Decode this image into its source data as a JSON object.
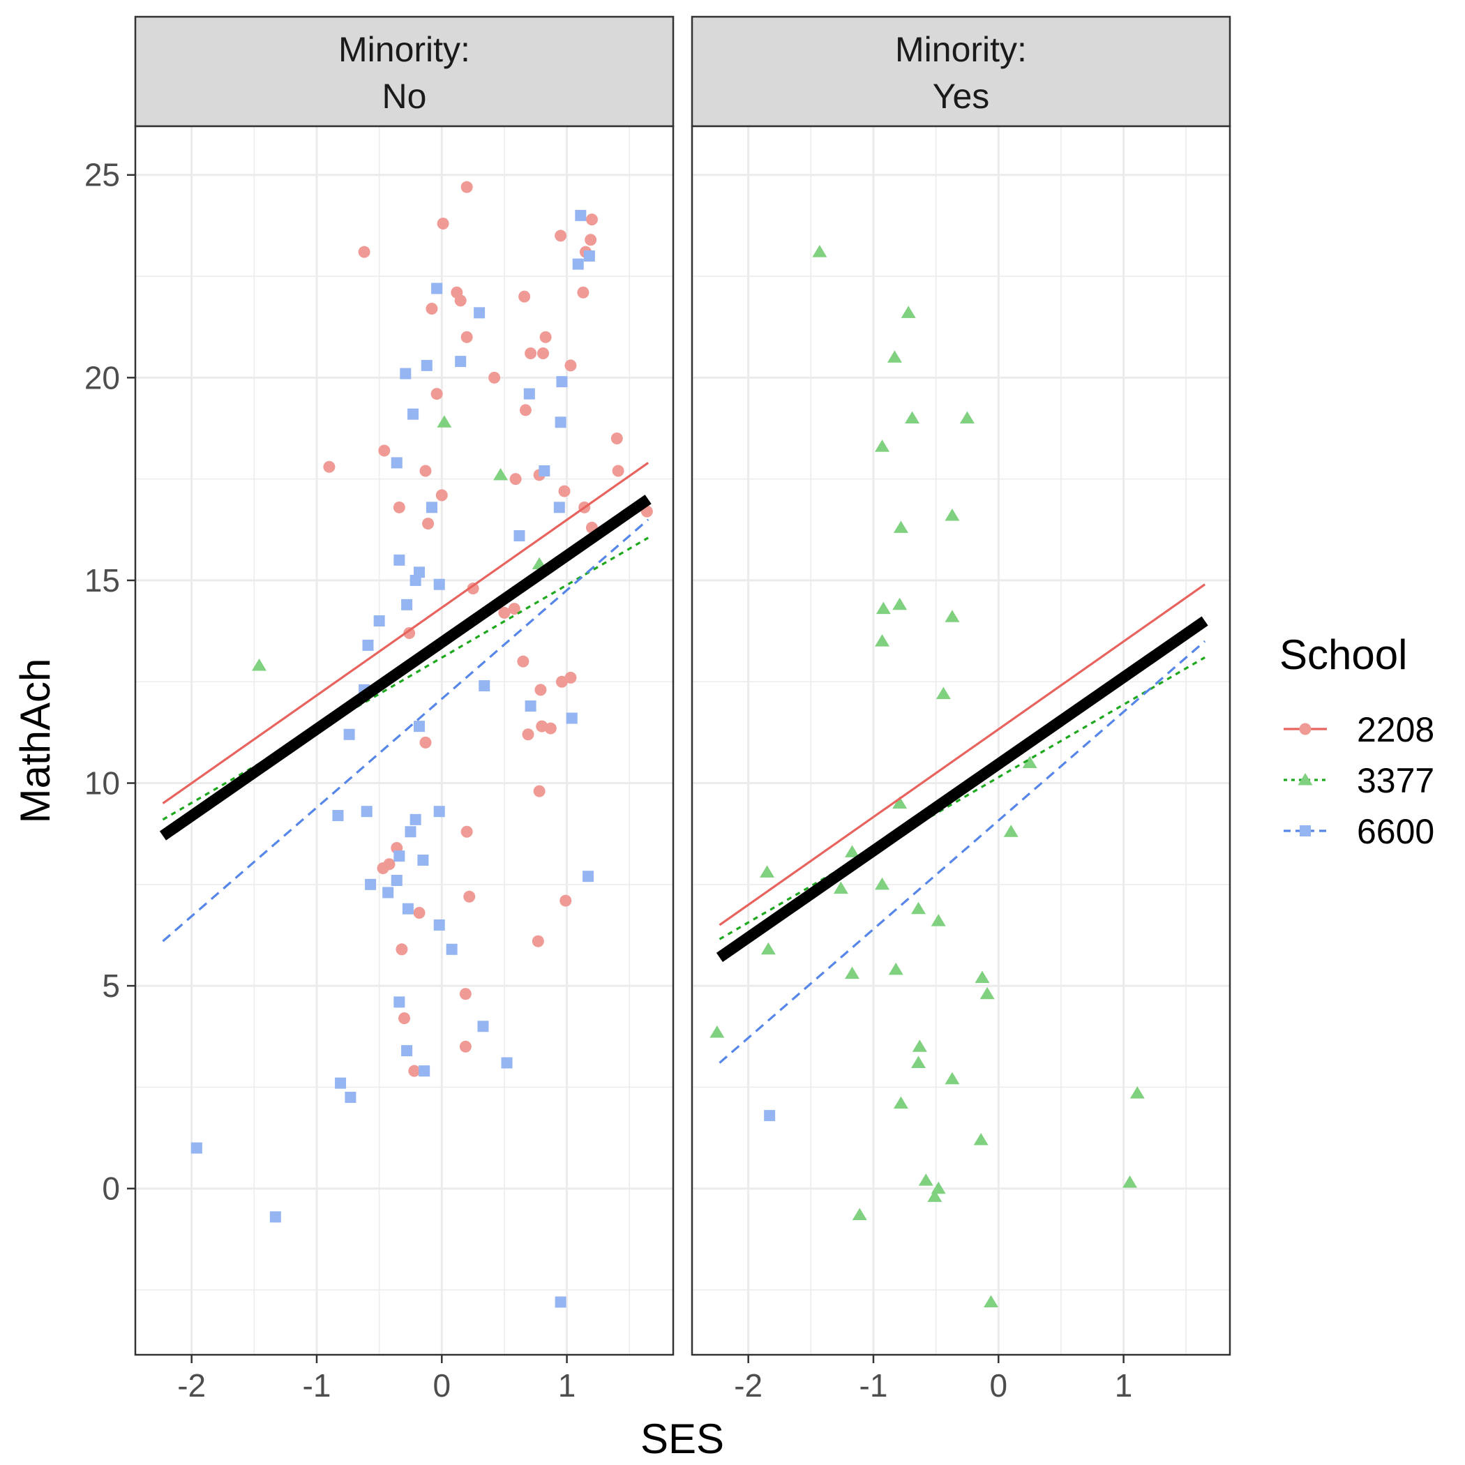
{
  "chart_data": {
    "type": "scatter",
    "xlabel": "SES",
    "ylabel": "MathAch",
    "xlim": [
      -2.45,
      1.85
    ],
    "ylim": [
      -4.1,
      26.2
    ],
    "x_ticks": [
      -2,
      -1,
      0,
      1
    ],
    "x_tick_labels": [
      "-2",
      "-1",
      "0",
      "1"
    ],
    "y_ticks": [
      0,
      5,
      10,
      15,
      20,
      25
    ],
    "y_tick_labels": [
      "0",
      "5",
      "10",
      "15",
      "20",
      "25"
    ],
    "grid": true,
    "legend": {
      "title": "School",
      "placement": "right",
      "entries": [
        {
          "label": "2208",
          "color": "#e8635e",
          "marker": "circle",
          "line": "solid"
        },
        {
          "label": "3377",
          "color": "#1ea81e",
          "marker": "triangle",
          "line": "dotted"
        },
        {
          "label": "6600",
          "color": "#5586e8",
          "marker": "square",
          "line": "dashed"
        }
      ]
    },
    "colors": {
      "2208_point": "#f09a96",
      "3377_point": "#7fd07f",
      "6600_point": "#94b4f2",
      "overall_line": "#000000",
      "strip_fill": "#d9d9d9",
      "grid": "#ebebeb"
    },
    "panels": [
      {
        "strip_line1": "Minority:",
        "strip_line2": "No",
        "fits": [
          {
            "school": "2208",
            "x": [
              -2.23,
              1.65
            ],
            "y": [
              9.5,
              17.9
            ]
          },
          {
            "school": "3377",
            "x": [
              -2.23,
              1.65
            ],
            "y": [
              9.1,
              16.05
            ]
          },
          {
            "school": "6600",
            "x": [
              -2.23,
              1.65
            ],
            "y": [
              6.1,
              16.5
            ]
          },
          {
            "school": "overall",
            "x": [
              -2.23,
              1.65
            ],
            "y": [
              8.7,
              17.0
            ]
          }
        ],
        "points": {
          "2208": [
            [
              -0.62,
              23.1
            ],
            [
              0.2,
              24.7
            ],
            [
              0.01,
              23.8
            ],
            [
              0.95,
              23.5
            ],
            [
              1.2,
              23.9
            ],
            [
              1.19,
              23.4
            ],
            [
              1.15,
              23.1
            ],
            [
              0.12,
              22.1
            ],
            [
              0.15,
              21.9
            ],
            [
              -0.08,
              21.7
            ],
            [
              0.66,
              22.0
            ],
            [
              1.13,
              22.1
            ],
            [
              0.2,
              21.0
            ],
            [
              0.83,
              21.0
            ],
            [
              0.71,
              20.6
            ],
            [
              0.81,
              20.6
            ],
            [
              1.03,
              20.3
            ],
            [
              0.42,
              20.0
            ],
            [
              -0.04,
              19.6
            ],
            [
              0.67,
              19.2
            ],
            [
              -0.46,
              18.2
            ],
            [
              -0.9,
              17.8
            ],
            [
              -0.13,
              17.7
            ],
            [
              0.59,
              17.5
            ],
            [
              0.78,
              17.6
            ],
            [
              1.4,
              18.5
            ],
            [
              1.41,
              17.7
            ],
            [
              0.98,
              17.2
            ],
            [
              0.0,
              17.1
            ],
            [
              -0.34,
              16.8
            ],
            [
              1.14,
              16.8
            ],
            [
              -0.11,
              16.4
            ],
            [
              1.2,
              16.3
            ],
            [
              1.64,
              16.7
            ],
            [
              0.25,
              14.8
            ],
            [
              0.5,
              14.2
            ],
            [
              0.58,
              14.3
            ],
            [
              -0.26,
              13.7
            ],
            [
              0.65,
              13.0
            ],
            [
              0.79,
              12.3
            ],
            [
              1.03,
              12.6
            ],
            [
              0.96,
              12.5
            ],
            [
              0.8,
              11.4
            ],
            [
              0.69,
              11.2
            ],
            [
              0.87,
              11.35
            ],
            [
              -0.13,
              11.0
            ],
            [
              0.78,
              9.8
            ],
            [
              0.2,
              8.8
            ],
            [
              -0.36,
              8.4
            ],
            [
              -0.42,
              8.0
            ],
            [
              -0.47,
              7.9
            ],
            [
              0.22,
              7.2
            ],
            [
              0.99,
              7.1
            ],
            [
              -0.18,
              6.8
            ],
            [
              -0.32,
              5.9
            ],
            [
              0.77,
              6.1
            ],
            [
              0.19,
              4.8
            ],
            [
              -0.3,
              4.2
            ],
            [
              0.19,
              3.5
            ],
            [
              -0.22,
              2.9
            ]
          ],
          "3377": [
            [
              0.02,
              18.9
            ],
            [
              0.47,
              17.6
            ],
            [
              -1.46,
              12.9
            ],
            [
              0.78,
              15.4
            ]
          ],
          "6600": [
            [
              1.11,
              24.0
            ],
            [
              1.09,
              22.8
            ],
            [
              1.18,
              23.0
            ],
            [
              -0.04,
              22.2
            ],
            [
              0.3,
              21.6
            ],
            [
              0.15,
              20.4
            ],
            [
              -0.12,
              20.3
            ],
            [
              -0.29,
              20.1
            ],
            [
              0.96,
              19.9
            ],
            [
              0.7,
              19.6
            ],
            [
              -0.23,
              19.1
            ],
            [
              0.95,
              18.9
            ],
            [
              -0.36,
              17.9
            ],
            [
              0.82,
              17.7
            ],
            [
              -0.08,
              16.8
            ],
            [
              0.94,
              16.8
            ],
            [
              0.62,
              16.1
            ],
            [
              -0.34,
              15.5
            ],
            [
              -0.18,
              15.2
            ],
            [
              -0.21,
              15.0
            ],
            [
              -0.02,
              14.9
            ],
            [
              -0.5,
              14.0
            ],
            [
              -0.28,
              14.4
            ],
            [
              -0.59,
              13.4
            ],
            [
              0.34,
              12.4
            ],
            [
              -0.62,
              12.3
            ],
            [
              0.71,
              11.9
            ],
            [
              -0.74,
              11.2
            ],
            [
              -0.18,
              11.4
            ],
            [
              1.04,
              11.6
            ],
            [
              -0.83,
              9.2
            ],
            [
              -0.6,
              9.3
            ],
            [
              -0.21,
              9.1
            ],
            [
              -0.25,
              8.8
            ],
            [
              -0.02,
              9.3
            ],
            [
              -0.34,
              8.2
            ],
            [
              -0.15,
              8.1
            ],
            [
              1.17,
              7.7
            ],
            [
              -0.57,
              7.5
            ],
            [
              -0.36,
              7.6
            ],
            [
              -0.43,
              7.3
            ],
            [
              -0.27,
              6.9
            ],
            [
              -0.02,
              6.5
            ],
            [
              0.08,
              5.9
            ],
            [
              -0.34,
              4.6
            ],
            [
              0.33,
              4.0
            ],
            [
              -0.28,
              3.4
            ],
            [
              0.52,
              3.1
            ],
            [
              -0.14,
              2.9
            ],
            [
              -0.81,
              2.6
            ],
            [
              -0.73,
              2.25
            ],
            [
              -1.96,
              1.0
            ],
            [
              -1.33,
              -0.7
            ],
            [
              0.95,
              -2.8
            ]
          ]
        }
      },
      {
        "strip_line1": "Minority:",
        "strip_line2": "Yes",
        "fits": [
          {
            "school": "2208",
            "x": [
              -2.23,
              1.65
            ],
            "y": [
              6.5,
              14.9
            ]
          },
          {
            "school": "3377",
            "x": [
              -2.23,
              1.65
            ],
            "y": [
              6.15,
              13.1
            ]
          },
          {
            "school": "6600",
            "x": [
              -2.23,
              1.65
            ],
            "y": [
              3.1,
              13.5
            ]
          },
          {
            "school": "overall",
            "x": [
              -2.23,
              1.65
            ],
            "y": [
              5.7,
              14.0
            ]
          }
        ],
        "points": {
          "2208": [],
          "3377": [
            [
              -1.43,
              23.1
            ],
            [
              -0.72,
              21.6
            ],
            [
              -0.83,
              20.5
            ],
            [
              -0.69,
              19.0
            ],
            [
              -0.25,
              19.0
            ],
            [
              -0.93,
              18.3
            ],
            [
              -0.37,
              16.6
            ],
            [
              -0.78,
              16.3
            ],
            [
              -0.92,
              14.3
            ],
            [
              -0.79,
              14.4
            ],
            [
              -0.37,
              14.1
            ],
            [
              -0.93,
              13.5
            ],
            [
              -0.44,
              12.2
            ],
            [
              -0.79,
              9.5
            ],
            [
              0.1,
              8.8
            ],
            [
              0.25,
              10.5
            ],
            [
              -1.85,
              7.8
            ],
            [
              -1.17,
              8.3
            ],
            [
              -1.26,
              7.4
            ],
            [
              -0.93,
              7.5
            ],
            [
              -0.64,
              6.9
            ],
            [
              -0.48,
              6.6
            ],
            [
              -1.84,
              5.9
            ],
            [
              -1.17,
              5.3
            ],
            [
              -0.82,
              5.4
            ],
            [
              -0.13,
              5.2
            ],
            [
              -0.09,
              4.8
            ],
            [
              -2.25,
              3.85
            ],
            [
              -0.63,
              3.5
            ],
            [
              -0.64,
              3.1
            ],
            [
              -0.37,
              2.7
            ],
            [
              -0.78,
              2.1
            ],
            [
              1.11,
              2.35
            ],
            [
              -0.14,
              1.2
            ],
            [
              -0.58,
              0.2
            ],
            [
              -0.48,
              0.0
            ],
            [
              -0.51,
              -0.2
            ],
            [
              1.05,
              0.15
            ],
            [
              -1.11,
              -0.65
            ],
            [
              -0.06,
              -2.8
            ]
          ],
          "6600": [
            [
              -1.83,
              1.8
            ]
          ]
        }
      }
    ]
  }
}
